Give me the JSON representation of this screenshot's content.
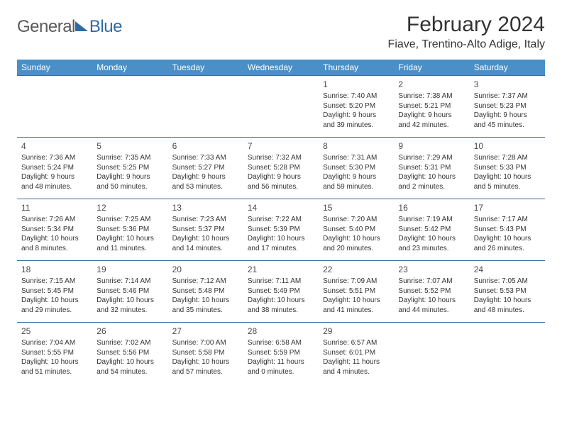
{
  "colors": {
    "header_bg": "#4a90c7",
    "header_text": "#ffffff",
    "week_border": "#3a6a9a",
    "body_text": "#333333",
    "logo_gray": "#5a5a5a",
    "logo_blue": "#2d6aa8",
    "background": "#ffffff"
  },
  "typography": {
    "title_fontsize": 30,
    "location_fontsize": 16,
    "weekday_fontsize": 12,
    "daynum_fontsize": 12,
    "body_fontsize": 10
  },
  "logo": {
    "text1": "General",
    "text2": "Blue"
  },
  "title": "February 2024",
  "location": "Fiave, Trentino-Alto Adige, Italy",
  "weekdays": [
    "Sunday",
    "Monday",
    "Tuesday",
    "Wednesday",
    "Thursday",
    "Friday",
    "Saturday"
  ],
  "weeks": [
    [
      {
        "n": "",
        "l1": "",
        "l2": "",
        "l3": "",
        "l4": ""
      },
      {
        "n": "",
        "l1": "",
        "l2": "",
        "l3": "",
        "l4": ""
      },
      {
        "n": "",
        "l1": "",
        "l2": "",
        "l3": "",
        "l4": ""
      },
      {
        "n": "",
        "l1": "",
        "l2": "",
        "l3": "",
        "l4": ""
      },
      {
        "n": "1",
        "l1": "Sunrise: 7:40 AM",
        "l2": "Sunset: 5:20 PM",
        "l3": "Daylight: 9 hours",
        "l4": "and 39 minutes."
      },
      {
        "n": "2",
        "l1": "Sunrise: 7:38 AM",
        "l2": "Sunset: 5:21 PM",
        "l3": "Daylight: 9 hours",
        "l4": "and 42 minutes."
      },
      {
        "n": "3",
        "l1": "Sunrise: 7:37 AM",
        "l2": "Sunset: 5:23 PM",
        "l3": "Daylight: 9 hours",
        "l4": "and 45 minutes."
      }
    ],
    [
      {
        "n": "4",
        "l1": "Sunrise: 7:36 AM",
        "l2": "Sunset: 5:24 PM",
        "l3": "Daylight: 9 hours",
        "l4": "and 48 minutes."
      },
      {
        "n": "5",
        "l1": "Sunrise: 7:35 AM",
        "l2": "Sunset: 5:25 PM",
        "l3": "Daylight: 9 hours",
        "l4": "and 50 minutes."
      },
      {
        "n": "6",
        "l1": "Sunrise: 7:33 AM",
        "l2": "Sunset: 5:27 PM",
        "l3": "Daylight: 9 hours",
        "l4": "and 53 minutes."
      },
      {
        "n": "7",
        "l1": "Sunrise: 7:32 AM",
        "l2": "Sunset: 5:28 PM",
        "l3": "Daylight: 9 hours",
        "l4": "and 56 minutes."
      },
      {
        "n": "8",
        "l1": "Sunrise: 7:31 AM",
        "l2": "Sunset: 5:30 PM",
        "l3": "Daylight: 9 hours",
        "l4": "and 59 minutes."
      },
      {
        "n": "9",
        "l1": "Sunrise: 7:29 AM",
        "l2": "Sunset: 5:31 PM",
        "l3": "Daylight: 10 hours",
        "l4": "and 2 minutes."
      },
      {
        "n": "10",
        "l1": "Sunrise: 7:28 AM",
        "l2": "Sunset: 5:33 PM",
        "l3": "Daylight: 10 hours",
        "l4": "and 5 minutes."
      }
    ],
    [
      {
        "n": "11",
        "l1": "Sunrise: 7:26 AM",
        "l2": "Sunset: 5:34 PM",
        "l3": "Daylight: 10 hours",
        "l4": "and 8 minutes."
      },
      {
        "n": "12",
        "l1": "Sunrise: 7:25 AM",
        "l2": "Sunset: 5:36 PM",
        "l3": "Daylight: 10 hours",
        "l4": "and 11 minutes."
      },
      {
        "n": "13",
        "l1": "Sunrise: 7:23 AM",
        "l2": "Sunset: 5:37 PM",
        "l3": "Daylight: 10 hours",
        "l4": "and 14 minutes."
      },
      {
        "n": "14",
        "l1": "Sunrise: 7:22 AM",
        "l2": "Sunset: 5:39 PM",
        "l3": "Daylight: 10 hours",
        "l4": "and 17 minutes."
      },
      {
        "n": "15",
        "l1": "Sunrise: 7:20 AM",
        "l2": "Sunset: 5:40 PM",
        "l3": "Daylight: 10 hours",
        "l4": "and 20 minutes."
      },
      {
        "n": "16",
        "l1": "Sunrise: 7:19 AM",
        "l2": "Sunset: 5:42 PM",
        "l3": "Daylight: 10 hours",
        "l4": "and 23 minutes."
      },
      {
        "n": "17",
        "l1": "Sunrise: 7:17 AM",
        "l2": "Sunset: 5:43 PM",
        "l3": "Daylight: 10 hours",
        "l4": "and 26 minutes."
      }
    ],
    [
      {
        "n": "18",
        "l1": "Sunrise: 7:15 AM",
        "l2": "Sunset: 5:45 PM",
        "l3": "Daylight: 10 hours",
        "l4": "and 29 minutes."
      },
      {
        "n": "19",
        "l1": "Sunrise: 7:14 AM",
        "l2": "Sunset: 5:46 PM",
        "l3": "Daylight: 10 hours",
        "l4": "and 32 minutes."
      },
      {
        "n": "20",
        "l1": "Sunrise: 7:12 AM",
        "l2": "Sunset: 5:48 PM",
        "l3": "Daylight: 10 hours",
        "l4": "and 35 minutes."
      },
      {
        "n": "21",
        "l1": "Sunrise: 7:11 AM",
        "l2": "Sunset: 5:49 PM",
        "l3": "Daylight: 10 hours",
        "l4": "and 38 minutes."
      },
      {
        "n": "22",
        "l1": "Sunrise: 7:09 AM",
        "l2": "Sunset: 5:51 PM",
        "l3": "Daylight: 10 hours",
        "l4": "and 41 minutes."
      },
      {
        "n": "23",
        "l1": "Sunrise: 7:07 AM",
        "l2": "Sunset: 5:52 PM",
        "l3": "Daylight: 10 hours",
        "l4": "and 44 minutes."
      },
      {
        "n": "24",
        "l1": "Sunrise: 7:05 AM",
        "l2": "Sunset: 5:53 PM",
        "l3": "Daylight: 10 hours",
        "l4": "and 48 minutes."
      }
    ],
    [
      {
        "n": "25",
        "l1": "Sunrise: 7:04 AM",
        "l2": "Sunset: 5:55 PM",
        "l3": "Daylight: 10 hours",
        "l4": "and 51 minutes."
      },
      {
        "n": "26",
        "l1": "Sunrise: 7:02 AM",
        "l2": "Sunset: 5:56 PM",
        "l3": "Daylight: 10 hours",
        "l4": "and 54 minutes."
      },
      {
        "n": "27",
        "l1": "Sunrise: 7:00 AM",
        "l2": "Sunset: 5:58 PM",
        "l3": "Daylight: 10 hours",
        "l4": "and 57 minutes."
      },
      {
        "n": "28",
        "l1": "Sunrise: 6:58 AM",
        "l2": "Sunset: 5:59 PM",
        "l3": "Daylight: 11 hours",
        "l4": "and 0 minutes."
      },
      {
        "n": "29",
        "l1": "Sunrise: 6:57 AM",
        "l2": "Sunset: 6:01 PM",
        "l3": "Daylight: 11 hours",
        "l4": "and 4 minutes."
      },
      {
        "n": "",
        "l1": "",
        "l2": "",
        "l3": "",
        "l4": ""
      },
      {
        "n": "",
        "l1": "",
        "l2": "",
        "l3": "",
        "l4": ""
      }
    ]
  ]
}
